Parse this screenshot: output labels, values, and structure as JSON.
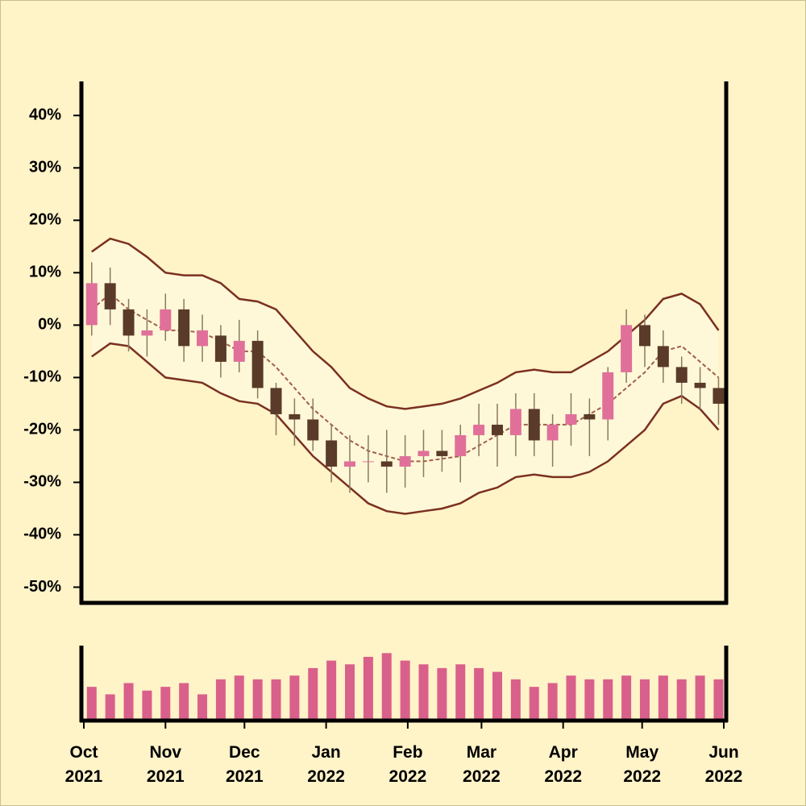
{
  "chart_data": {
    "type": "candlestick",
    "x": [
      3,
      10,
      17,
      24,
      31,
      38,
      45,
      52,
      59,
      66,
      73,
      80,
      87,
      94,
      101,
      108,
      115,
      122,
      129,
      136,
      143,
      150,
      157,
      164,
      171,
      178,
      185,
      192,
      199,
      206,
      213,
      220,
      227,
      234,
      241
    ],
    "open": [
      0,
      8,
      3,
      -2,
      -1,
      3,
      -4,
      -2,
      -7,
      -3,
      -12,
      -17,
      -18,
      -22,
      -27,
      -26,
      -26,
      -27,
      -25,
      -24,
      -25,
      -21,
      -19,
      -21,
      -16,
      -22,
      -19,
      -17,
      -18,
      -9,
      0,
      -4,
      -8,
      -11,
      -12
    ],
    "high": [
      12,
      11,
      5,
      3,
      6,
      5,
      2,
      0,
      1,
      -1,
      -11,
      -14,
      -14,
      -19,
      -21,
      -21,
      -20,
      -21,
      -20,
      -20,
      -19,
      -15,
      -15,
      -13,
      -13,
      -17,
      -13,
      -14,
      -8,
      3,
      2,
      -1,
      -6,
      -8,
      -10
    ],
    "low": [
      -2,
      0,
      -5,
      -6,
      -3,
      -7,
      -7,
      -10,
      -9,
      -14,
      -21,
      -23,
      -24,
      -30,
      -32,
      -30,
      -32,
      -31,
      -29,
      -28,
      -30,
      -25,
      -27,
      -25,
      -25,
      -27,
      -23,
      -25,
      -22,
      -11,
      -8,
      -11,
      -15,
      -16,
      -19
    ],
    "close": [
      8,
      3,
      -2,
      -1,
      3,
      -4,
      -1,
      -7,
      -3,
      -12,
      -17,
      -18,
      -22,
      -27,
      -26,
      -26,
      -27,
      -25,
      -24,
      -25,
      -21,
      -19,
      -21,
      -16,
      -22,
      -19,
      -17,
      -18,
      -9,
      0,
      -4,
      -8,
      -11,
      -12,
      -15
    ],
    "moving_average": [
      3,
      6,
      3,
      1,
      -1,
      -1,
      -1.5,
      -3,
      -5,
      -5,
      -8,
      -12,
      -16,
      -19,
      -22,
      -24,
      -25,
      -26,
      -26,
      -25.5,
      -25,
      -23,
      -21,
      -19,
      -19,
      -19,
      -19,
      -17,
      -15,
      -12,
      -9,
      -5,
      -4,
      -7,
      -10
    ],
    "upper_band": [
      14,
      16.5,
      15.5,
      13,
      10,
      9.5,
      9.5,
      8,
      5,
      4.5,
      3,
      -1,
      -5,
      -8,
      -12,
      -14,
      -15.5,
      -16,
      -15.5,
      -15,
      -14,
      -12.5,
      -11,
      -9,
      -8.5,
      -9,
      -9,
      -7,
      -5,
      -2,
      1,
      5,
      6,
      4,
      -1
    ],
    "lower_band": [
      -6,
      -3.5,
      -4,
      -7,
      -10,
      -10.5,
      -11,
      -13,
      -14.5,
      -15,
      -17,
      -21,
      -25,
      -28,
      -31,
      -34,
      -35.5,
      -36,
      -35.5,
      -35,
      -34,
      -32,
      -31,
      -29,
      -28.5,
      -29,
      -29,
      -28,
      -26,
      -23,
      -20,
      -15,
      -13.5,
      -16,
      -20
    ],
    "volume": [
      45,
      35,
      50,
      40,
      45,
      50,
      35,
      55,
      60,
      55,
      55,
      60,
      70,
      80,
      75,
      85,
      90,
      80,
      75,
      70,
      75,
      70,
      65,
      55,
      45,
      50,
      60,
      55,
      55,
      60,
      55,
      60,
      55,
      60,
      55
    ],
    "volume_ylim": [
      0,
      100
    ],
    "up_color": "#e0709a",
    "down_color": "#5a3a28",
    "band_color": "#7a3020",
    "ma_color": "#a0604a",
    "band_fill": "#fff8d8",
    "volume_color": "#d9608a",
    "xlim": [
      0,
      243
    ],
    "xticks": [
      {
        "value": 0,
        "label": "Oct 2021"
      },
      {
        "value": 31,
        "label": "Nov 2021"
      },
      {
        "value": 61,
        "label": "Dec 2021"
      },
      {
        "value": 92,
        "label": "Jan 2022"
      },
      {
        "value": 123,
        "label": "Feb 2022"
      },
      {
        "value": 151,
        "label": "Mar 2022"
      },
      {
        "value": 182,
        "label": "Apr 2022"
      },
      {
        "value": 212,
        "label": "May 2022"
      },
      {
        "value": 243,
        "label": "Jun 2022"
      }
    ],
    "ylim": [
      -53,
      46.5
    ],
    "yticks": [
      {
        "value": 40,
        "label": "40%"
      },
      {
        "value": 30,
        "label": "30%"
      },
      {
        "value": 20,
        "label": "20%"
      },
      {
        "value": 10,
        "label": "10%"
      },
      {
        "value": 0,
        "label": "0%"
      },
      {
        "value": -10,
        "label": "-10%"
      },
      {
        "value": -20,
        "label": "-20%"
      },
      {
        "value": -30,
        "label": "-30%"
      },
      {
        "value": -40,
        "label": "-40%"
      },
      {
        "value": -50,
        "label": "-50%"
      }
    ]
  }
}
